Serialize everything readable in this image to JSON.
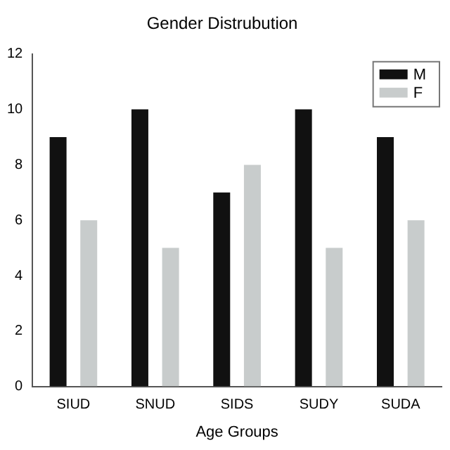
{
  "chart_data": {
    "type": "bar",
    "title": "Gender Distrubution",
    "xlabel": "Age Groups",
    "categories": [
      "SIUD",
      "SNUD",
      "SIDS",
      "SUDY",
      "SUDA"
    ],
    "series": [
      {
        "name": "M",
        "color": "#111111",
        "values": [
          9,
          10,
          7,
          10,
          9
        ]
      },
      {
        "name": "F",
        "color": "#c8cccc",
        "values": [
          6,
          5,
          8,
          5,
          6
        ]
      }
    ],
    "ylim": [
      0,
      12
    ],
    "yticks": [
      0,
      2,
      4,
      6,
      8,
      10,
      12
    ],
    "grid": false,
    "legend": "top right"
  }
}
